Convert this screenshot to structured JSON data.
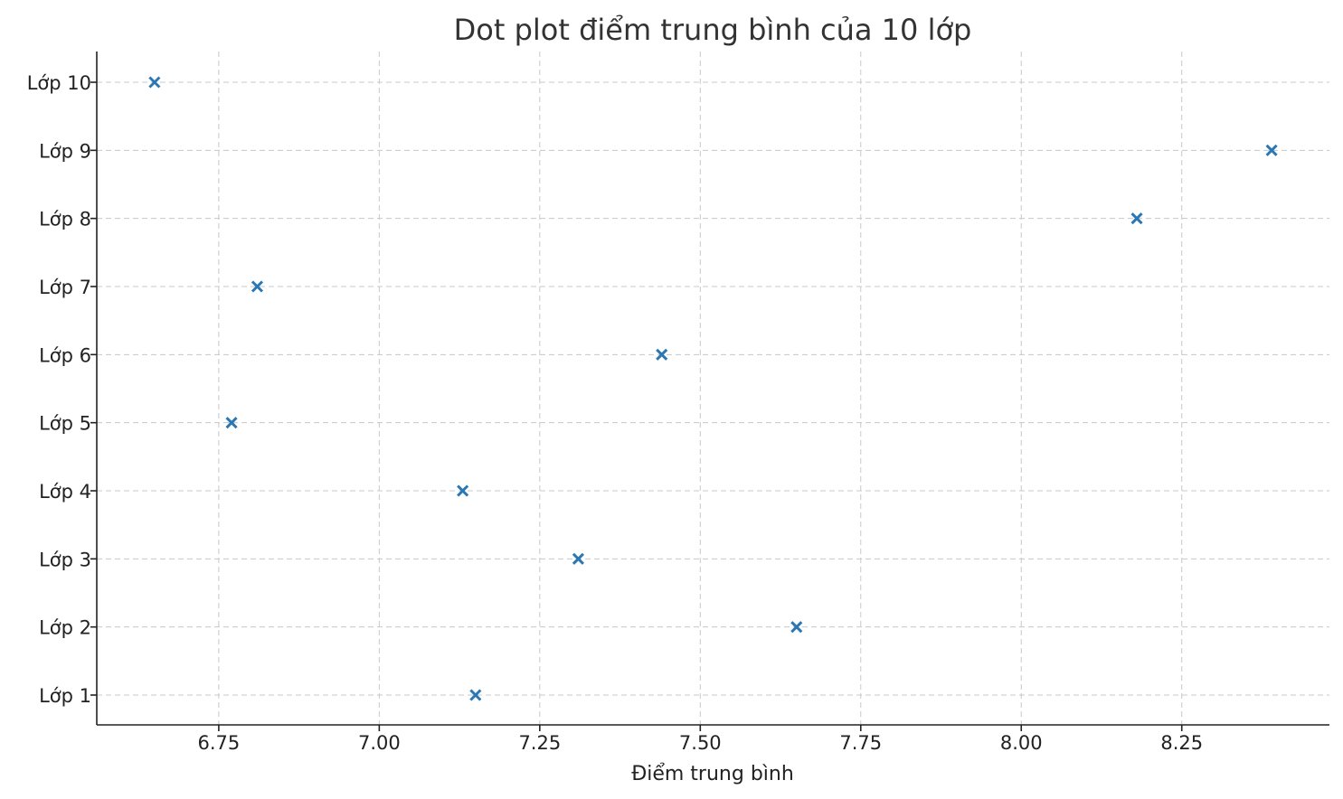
{
  "chart_data": {
    "type": "scatter",
    "title": "Dot plot điểm trung bình của 10 lớp",
    "xlabel": "Điểm trung bình",
    "ylabel": "",
    "xlim": [
      6.56,
      8.48
    ],
    "x_ticks": [
      6.75,
      7.0,
      7.25,
      7.5,
      7.75,
      8.0,
      8.25
    ],
    "x_tick_labels": [
      "6.75",
      "7.00",
      "7.25",
      "7.50",
      "7.75",
      "8.00",
      "8.25"
    ],
    "categories": [
      "Lớp 1",
      "Lớp 2",
      "Lớp 3",
      "Lớp 4",
      "Lớp 5",
      "Lớp 6",
      "Lớp 7",
      "Lớp 8",
      "Lớp 9",
      "Lớp 10"
    ],
    "values": [
      7.15,
      7.65,
      7.31,
      7.13,
      6.77,
      7.44,
      6.81,
      8.18,
      8.39,
      6.65
    ],
    "marker": "x",
    "color": "#2a77b4",
    "grid": true,
    "legend": false
  }
}
